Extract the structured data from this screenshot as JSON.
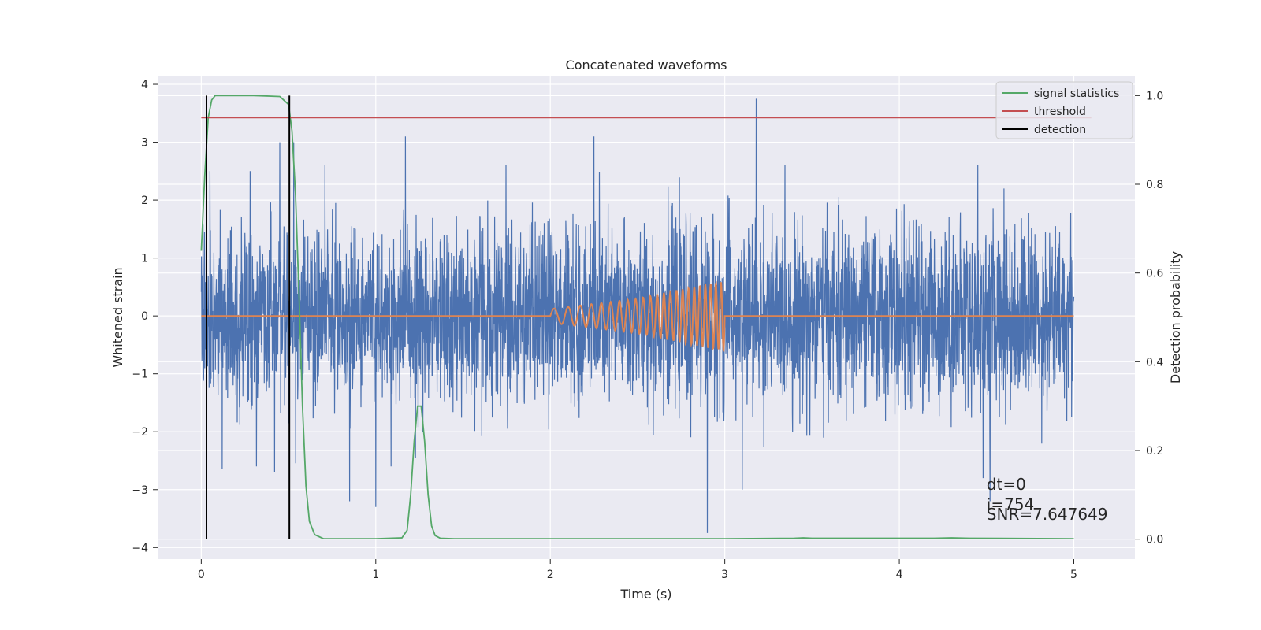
{
  "chart_data": {
    "type": "line",
    "title": "Concatenated waveforms",
    "xlabel": "Time (s)",
    "ylabel_left": "Whitened strain",
    "ylabel_right": "Detection probability",
    "xlim": [
      -0.25,
      5.35
    ],
    "ylim_left": [
      -4.2,
      4.15
    ],
    "ylim_right": [
      -0.045,
      1.045
    ],
    "x_ticks": [
      0,
      1,
      2,
      3,
      4,
      5
    ],
    "x_tick_labels": [
      "0",
      "1",
      "2",
      "3",
      "4",
      "5"
    ],
    "y_left_ticks": [
      -4,
      -3,
      -2,
      -1,
      0,
      1,
      2,
      3,
      4
    ],
    "y_left_tick_labels": [
      "−4",
      "−3",
      "−2",
      "−1",
      "0",
      "1",
      "2",
      "3",
      "4"
    ],
    "y_right_ticks": [
      0.0,
      0.2,
      0.4,
      0.6,
      0.8,
      1.0
    ],
    "y_right_tick_labels": [
      "0.0",
      "0.2",
      "0.4",
      "0.6",
      "0.8",
      "1.0"
    ],
    "grid": true,
    "legend_position": "top-right",
    "legend": [
      "signal statistics",
      "threshold",
      "detection"
    ],
    "colors": {
      "background": "#eaeaf2",
      "grid": "#ffffff",
      "noise": "#4c72b0",
      "injection": "#dd8452",
      "signal_statistics": "#55a868",
      "threshold": "#c44e52",
      "detection": "#000000",
      "text": "#262626"
    },
    "series": [
      {
        "name": "",
        "axis": "left",
        "description_kind": "whitened noise",
        "x_range": [
          0,
          5
        ],
        "typical_amplitude": 0.75,
        "peaks": [
          {
            "x": 0.05,
            "y": 2.5
          },
          {
            "x": 0.28,
            "y": 2.5
          },
          {
            "x": 0.45,
            "y": 3.0
          },
          {
            "x": 0.53,
            "y": 3.0
          },
          {
            "x": 1.17,
            "y": 3.1
          },
          {
            "x": 2.25,
            "y": 3.1
          },
          {
            "x": 3.18,
            "y": 3.75
          },
          {
            "x": 4.45,
            "y": 2.6
          },
          {
            "x": 4.6,
            "y": 2.2
          },
          {
            "x": 1.27,
            "y": -2.0
          },
          {
            "x": 0.12,
            "y": -2.65
          },
          {
            "x": 0.42,
            "y": -2.7
          },
          {
            "x": 0.85,
            "y": -3.2
          },
          {
            "x": 1.0,
            "y": -3.3
          },
          {
            "x": 2.9,
            "y": -3.75
          },
          {
            "x": 3.1,
            "y": -3.0
          },
          {
            "x": 4.48,
            "y": -2.8
          },
          {
            "x": 4.52,
            "y": -3.2
          }
        ]
      },
      {
        "name": "",
        "axis": "left",
        "description_kind": "chirp injection",
        "x": [
          0,
          2,
          2.5,
          2.9,
          3,
          5
        ],
        "amplitude": [
          0,
          0.12,
          0.3,
          0.55,
          0.6,
          0
        ],
        "chirp_start": 2.0,
        "chirp_end": 3.0,
        "start_frequency_hz": 11,
        "end_frequency_hz": 35
      },
      {
        "name": "signal statistics",
        "axis": "right",
        "x": [
          0.0,
          0.02,
          0.04,
          0.06,
          0.08,
          0.1,
          0.15,
          0.3,
          0.45,
          0.5,
          0.52,
          0.54,
          0.56,
          0.58,
          0.6,
          0.62,
          0.65,
          0.7,
          1.0,
          1.15,
          1.18,
          1.2,
          1.22,
          1.24,
          1.26,
          1.28,
          1.3,
          1.32,
          1.34,
          1.37,
          1.45,
          2.0,
          3.0,
          3.4,
          3.45,
          3.5,
          4.2,
          4.3,
          4.4,
          5.0
        ],
        "y": [
          0.65,
          0.82,
          0.95,
          0.99,
          1.0,
          1.0,
          1.0,
          1.0,
          0.998,
          0.98,
          0.92,
          0.78,
          0.55,
          0.3,
          0.12,
          0.04,
          0.01,
          0.001,
          0.001,
          0.003,
          0.02,
          0.1,
          0.22,
          0.3,
          0.3,
          0.22,
          0.1,
          0.03,
          0.008,
          0.002,
          0.001,
          0.001,
          0.001,
          0.002,
          0.003,
          0.002,
          0.002,
          0.003,
          0.002,
          0.001
        ]
      },
      {
        "name": "threshold",
        "axis": "right",
        "x": [
          0,
          5.1
        ],
        "y": [
          0.95,
          0.95
        ]
      },
      {
        "name": "detection",
        "axis": "right",
        "segments": [
          {
            "x": 0.03,
            "y": [
              0.0,
              1.0
            ]
          },
          {
            "x": 0.505,
            "y": [
              0.0,
              1.0
            ]
          }
        ]
      }
    ],
    "annotations": [
      {
        "text": "dt=0",
        "x": 4.5,
        "y": -3.0
      },
      {
        "text": "i=754",
        "x": 4.5,
        "y": -3.35
      },
      {
        "text": "SNR=7.647649",
        "x": 4.5,
        "y": -3.52
      }
    ]
  }
}
